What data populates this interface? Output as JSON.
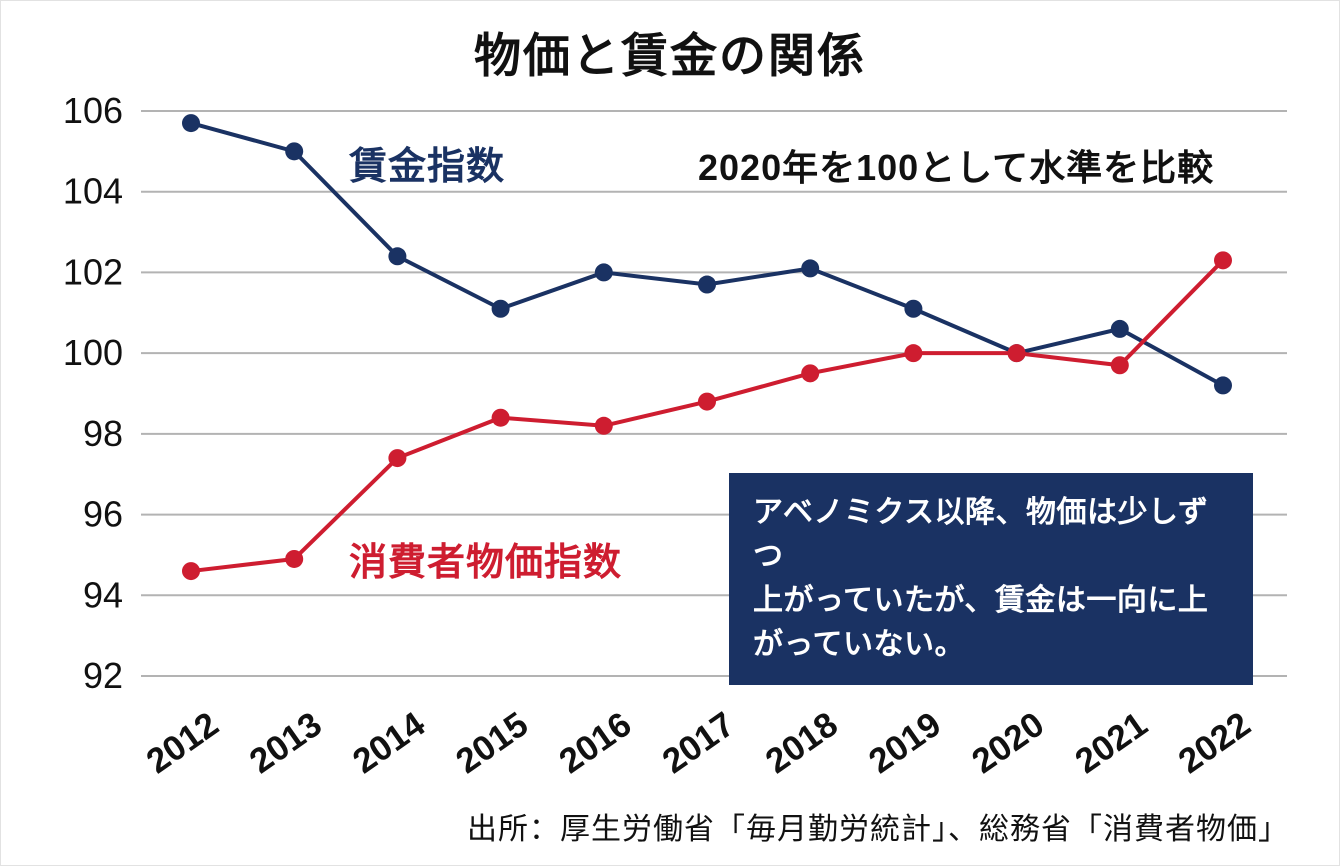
{
  "chart_data": {
    "type": "line",
    "title": "物価と賃金の関係",
    "baseline_note": "2020年を100として水準を比較",
    "x": [
      "2012",
      "2013",
      "2014",
      "2015",
      "2016",
      "2017",
      "2018",
      "2019",
      "2020",
      "2021",
      "2022"
    ],
    "series": [
      {
        "key": "wage",
        "name": "賃金指数",
        "color": "#1a3263",
        "values": [
          105.7,
          105.0,
          102.4,
          101.1,
          102.0,
          101.7,
          102.1,
          101.1,
          100.0,
          100.6,
          99.2
        ]
      },
      {
        "key": "cpi",
        "name": "消費者物価指数",
        "color": "#ce1d30",
        "values": [
          94.6,
          94.9,
          97.4,
          98.4,
          98.2,
          98.8,
          99.5,
          100.0,
          100.0,
          99.7,
          102.3
        ]
      }
    ],
    "ylim": [
      92,
      106
    ],
    "ytick_step": 2,
    "grid": true,
    "legend": "inline-labels",
    "callout_lines": [
      "アベノミクス以降、物価は少しずつ",
      "上がっていたが、賃金は一向に上",
      "がっていない。"
    ],
    "source": "出所：厚生労働省「毎月勤労統計」、総務省「消費者物価」"
  },
  "colors": {
    "wage_line": "#1a3263",
    "cpi_line": "#ce1d30",
    "grid": "#b3b3b3",
    "text": "#111111",
    "callout_bg": "#1a3263",
    "callout_text": "#ffffff"
  }
}
